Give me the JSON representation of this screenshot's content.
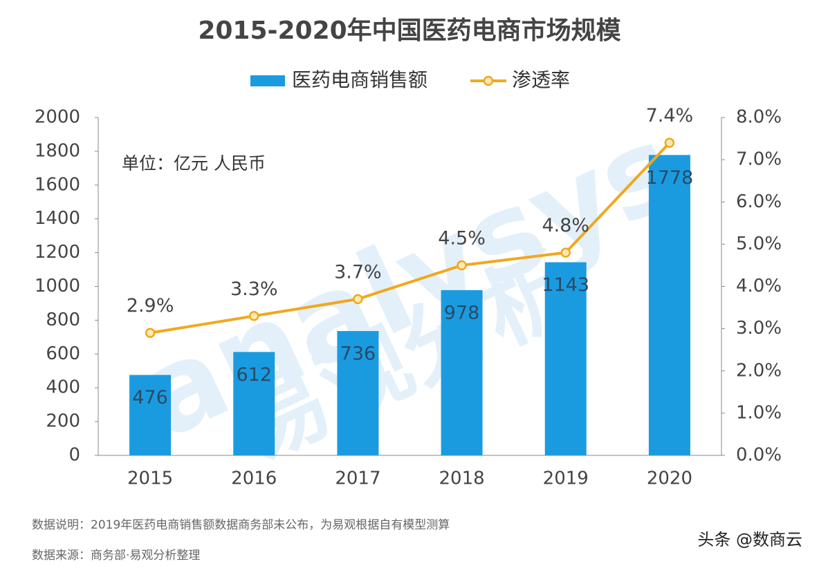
{
  "chart_data": {
    "type": "bar",
    "title": "2015-2020年中国医药电商市场规模",
    "unit_note": "单位：亿元 人民币",
    "categories": [
      "2015",
      "2016",
      "2017",
      "2018",
      "2019",
      "2020"
    ],
    "series": [
      {
        "name": "医药电商销售额",
        "color": "#1a9be0",
        "values": [
          476,
          612,
          736,
          978,
          1143,
          1778
        ]
      },
      {
        "name": "渗透率",
        "type": "line",
        "axis": "y2",
        "color": "#f0a81e",
        "values": [
          2.9,
          3.3,
          3.7,
          4.5,
          4.8,
          7.4
        ],
        "value_labels": [
          "2.9%",
          "3.3%",
          "3.7%",
          "4.5%",
          "4.8%",
          "7.4%"
        ]
      }
    ],
    "ylim": [
      0,
      2000
    ],
    "yticks": [
      0,
      200,
      400,
      600,
      800,
      1000,
      1200,
      1400,
      1600,
      1800,
      2000
    ],
    "y2lim": [
      0,
      8
    ],
    "y2ticks": [
      {
        "value": 0,
        "label": "0.0%"
      },
      {
        "value": 1,
        "label": "1.0%"
      },
      {
        "value": 2,
        "label": "2.0%"
      },
      {
        "value": 3,
        "label": "3.0%"
      },
      {
        "value": 4,
        "label": "4.0%"
      },
      {
        "value": 5,
        "label": "5.0%"
      },
      {
        "value": 6,
        "label": "6.0%"
      },
      {
        "value": 7,
        "label": "7.0%"
      },
      {
        "value": 8,
        "label": "8.0%"
      }
    ],
    "grid": false,
    "legend": "top",
    "watermark": [
      "analysys",
      "易观分析"
    ],
    "notes": [
      "数据说明：2019年医药电商销售额数据商务部未公布，为易观根据自有模型测算",
      "数据来源：商务部·易观分析整理"
    ],
    "credit": "头条 @数商云"
  }
}
